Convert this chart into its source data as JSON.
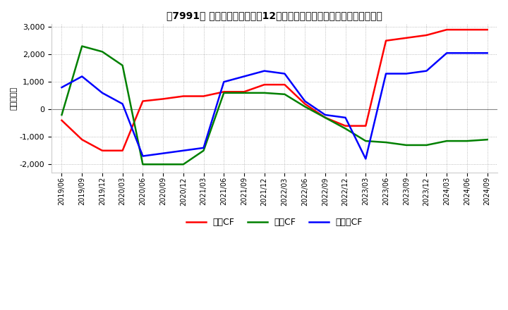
{
  "title": "、7991、 キャッシュフローの12か月移動合計の対前年同期増減額の推移",
  "title_bracket_left": "、7991、",
  "ylabel": "（百万円）",
  "ylim": [
    -2300,
    3100
  ],
  "yticks": [
    -2000,
    -1000,
    0,
    1000,
    2000,
    3000
  ],
  "dates": [
    "2019/06",
    "2019/09",
    "2019/12",
    "2020/03",
    "2020/06",
    "2020/09",
    "2020/12",
    "2021/03",
    "2021/06",
    "2021/09",
    "2021/12",
    "2022/03",
    "2022/06",
    "2022/09",
    "2022/12",
    "2023/03",
    "2023/06",
    "2023/09",
    "2023/12",
    "2024/03",
    "2024/06",
    "2024/09"
  ],
  "eigyo_cf": [
    -400,
    -1100,
    -1500,
    -1500,
    300,
    380,
    480,
    480,
    640,
    640,
    900,
    900,
    200,
    -300,
    -600,
    -600,
    2500,
    2600,
    2700,
    2900,
    2900,
    2900
  ],
  "toshi_cf": [
    -200,
    2300,
    2100,
    1600,
    -2000,
    -2000,
    -2000,
    -1500,
    600,
    600,
    600,
    550,
    100,
    -300,
    -700,
    -1150,
    -1200,
    -1300,
    -1300,
    -1150,
    -1150,
    -1100
  ],
  "free_cf": [
    800,
    1200,
    600,
    200,
    -1700,
    -1600,
    -1500,
    -1400,
    1000,
    1200,
    1400,
    1300,
    300,
    -200,
    -300,
    -1800,
    1300,
    1300,
    1400,
    2050,
    2050,
    2050
  ],
  "eigyo_color": "#ff0000",
  "toshi_color": "#008000",
  "free_color": "#0000ff",
  "bg_color": "#ffffff",
  "grid_color": "#aaaaaa",
  "legend_labels": [
    "営業CF",
    "投資CF",
    "フリーCF"
  ]
}
